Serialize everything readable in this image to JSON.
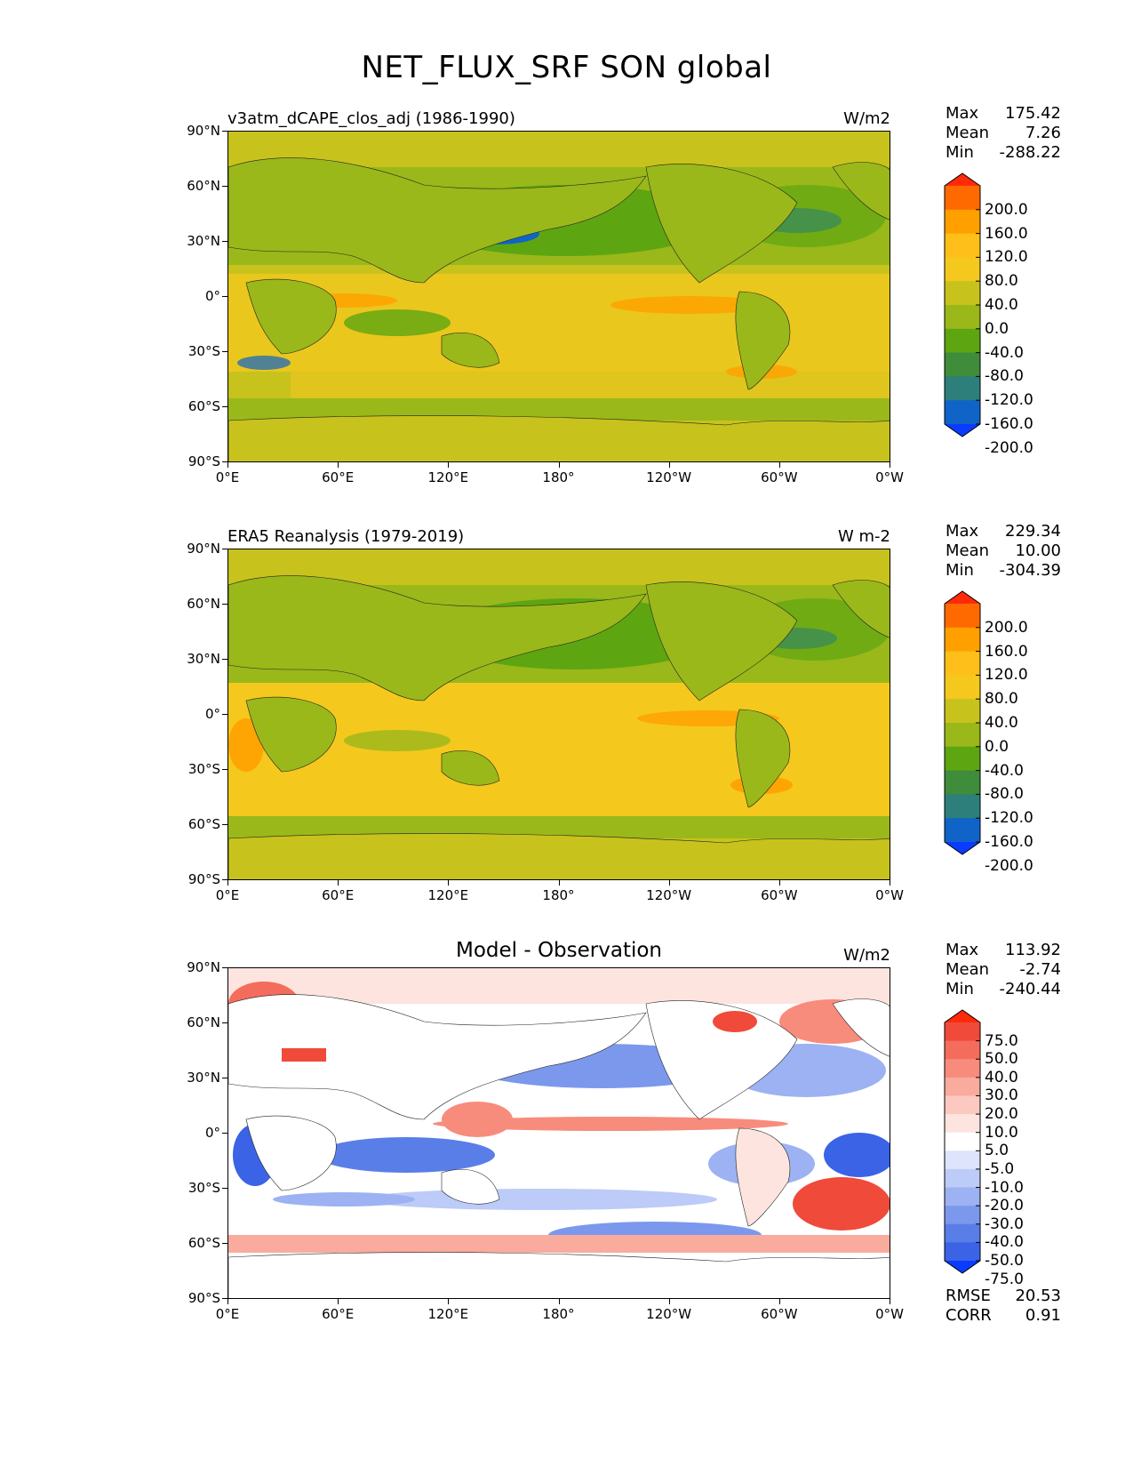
{
  "page_title": "NET_FLUX_SRF SON global",
  "x_ticks": [
    "0°E",
    "60°E",
    "120°E",
    "180°",
    "120°W",
    "60°W",
    "0°W"
  ],
  "y_ticks": [
    "90°N",
    "60°N",
    "30°N",
    "0°",
    "30°S",
    "60°S",
    "90°S"
  ],
  "panels": [
    {
      "id": "model",
      "left_title": "v3atm_dCAPE_clos_adj (1986-1990)",
      "center_title": "",
      "units": "W/m2",
      "stats": {
        "max_label": "Max",
        "max": "175.42",
        "mean_label": "Mean",
        "mean": "7.26",
        "min_label": "Min",
        "min": "-288.22"
      },
      "colorbar": {
        "labels": [
          "200.0",
          "160.0",
          "120.0",
          "80.0",
          "40.0",
          "0.0",
          "-40.0",
          "-80.0",
          "-120.0",
          "-160.0",
          "-200.0"
        ],
        "colors": [
          "#ff2a0a",
          "#ff6a00",
          "#ffa000",
          "#ffbf1a",
          "#f5c81e",
          "#c8c21c",
          "#9ab81a",
          "#5ea512",
          "#3f8c3a",
          "#2c7f7a",
          "#1064c8",
          "#0a3cff"
        ]
      }
    },
    {
      "id": "obs",
      "left_title": "ERA5 Reanalysis (1979-2019)",
      "center_title": "",
      "units": "W m-2",
      "stats": {
        "max_label": "Max",
        "max": "229.34",
        "mean_label": "Mean",
        "mean": "10.00",
        "min_label": "Min",
        "min": "-304.39"
      },
      "colorbar": {
        "labels": [
          "200.0",
          "160.0",
          "120.0",
          "80.0",
          "40.0",
          "0.0",
          "-40.0",
          "-80.0",
          "-120.0",
          "-160.0",
          "-200.0"
        ],
        "colors": [
          "#ff2a0a",
          "#ff6a00",
          "#ffa000",
          "#ffbf1a",
          "#f5c81e",
          "#c8c21c",
          "#9ab81a",
          "#5ea512",
          "#3f8c3a",
          "#2c7f7a",
          "#1064c8",
          "#0a3cff"
        ]
      }
    },
    {
      "id": "diff",
      "left_title": "",
      "center_title": "Model - Observation",
      "units": "W/m2",
      "stats": {
        "max_label": "Max",
        "max": "113.92",
        "mean_label": "Mean",
        "mean": "-2.74",
        "min_label": "Min",
        "min": "-240.44"
      },
      "metrics": {
        "rmse_label": "RMSE",
        "rmse": "20.53",
        "corr_label": "CORR",
        "corr": "0.91"
      },
      "colorbar": {
        "labels": [
          "75.0",
          "50.0",
          "40.0",
          "30.0",
          "20.0",
          "10.0",
          "5.0",
          "-5.0",
          "-10.0",
          "-20.0",
          "-30.0",
          "-40.0",
          "-50.0",
          "-75.0"
        ],
        "colors": [
          "#ff2a0a",
          "#f04a3a",
          "#f46c5c",
          "#f78c7c",
          "#f9ab9e",
          "#fbc9bf",
          "#fde4de",
          "#ffffff",
          "#dde4fb",
          "#bccbf7",
          "#9cb2f2",
          "#7b98ed",
          "#5a7ee8",
          "#3a63e6",
          "#0a3cff"
        ]
      }
    }
  ]
}
